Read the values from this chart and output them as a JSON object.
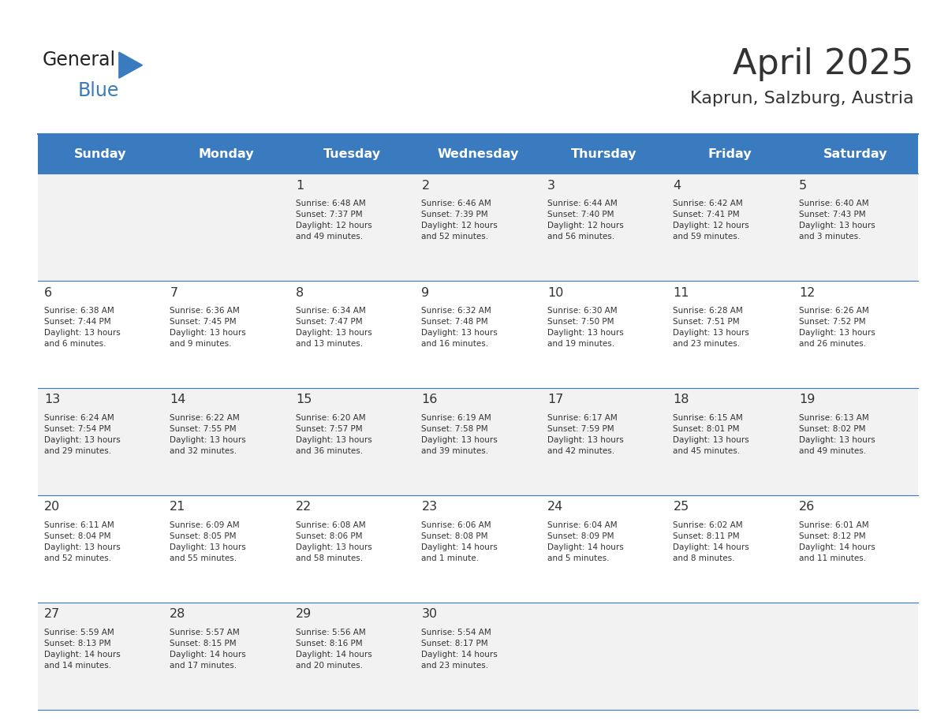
{
  "title": "April 2025",
  "subtitle": "Kaprun, Salzburg, Austria",
  "header_bg": "#3a7bbf",
  "header_text": "#ffffff",
  "row_bg_light": "#f2f2f2",
  "row_bg_white": "#ffffff",
  "border_color": "#3a7bbf",
  "text_color": "#333333",
  "days_of_week": [
    "Sunday",
    "Monday",
    "Tuesday",
    "Wednesday",
    "Thursday",
    "Friday",
    "Saturday"
  ],
  "weeks": [
    [
      {
        "day": "",
        "info": ""
      },
      {
        "day": "",
        "info": ""
      },
      {
        "day": "1",
        "info": "Sunrise: 6:48 AM\nSunset: 7:37 PM\nDaylight: 12 hours\nand 49 minutes."
      },
      {
        "day": "2",
        "info": "Sunrise: 6:46 AM\nSunset: 7:39 PM\nDaylight: 12 hours\nand 52 minutes."
      },
      {
        "day": "3",
        "info": "Sunrise: 6:44 AM\nSunset: 7:40 PM\nDaylight: 12 hours\nand 56 minutes."
      },
      {
        "day": "4",
        "info": "Sunrise: 6:42 AM\nSunset: 7:41 PM\nDaylight: 12 hours\nand 59 minutes."
      },
      {
        "day": "5",
        "info": "Sunrise: 6:40 AM\nSunset: 7:43 PM\nDaylight: 13 hours\nand 3 minutes."
      }
    ],
    [
      {
        "day": "6",
        "info": "Sunrise: 6:38 AM\nSunset: 7:44 PM\nDaylight: 13 hours\nand 6 minutes."
      },
      {
        "day": "7",
        "info": "Sunrise: 6:36 AM\nSunset: 7:45 PM\nDaylight: 13 hours\nand 9 minutes."
      },
      {
        "day": "8",
        "info": "Sunrise: 6:34 AM\nSunset: 7:47 PM\nDaylight: 13 hours\nand 13 minutes."
      },
      {
        "day": "9",
        "info": "Sunrise: 6:32 AM\nSunset: 7:48 PM\nDaylight: 13 hours\nand 16 minutes."
      },
      {
        "day": "10",
        "info": "Sunrise: 6:30 AM\nSunset: 7:50 PM\nDaylight: 13 hours\nand 19 minutes."
      },
      {
        "day": "11",
        "info": "Sunrise: 6:28 AM\nSunset: 7:51 PM\nDaylight: 13 hours\nand 23 minutes."
      },
      {
        "day": "12",
        "info": "Sunrise: 6:26 AM\nSunset: 7:52 PM\nDaylight: 13 hours\nand 26 minutes."
      }
    ],
    [
      {
        "day": "13",
        "info": "Sunrise: 6:24 AM\nSunset: 7:54 PM\nDaylight: 13 hours\nand 29 minutes."
      },
      {
        "day": "14",
        "info": "Sunrise: 6:22 AM\nSunset: 7:55 PM\nDaylight: 13 hours\nand 32 minutes."
      },
      {
        "day": "15",
        "info": "Sunrise: 6:20 AM\nSunset: 7:57 PM\nDaylight: 13 hours\nand 36 minutes."
      },
      {
        "day": "16",
        "info": "Sunrise: 6:19 AM\nSunset: 7:58 PM\nDaylight: 13 hours\nand 39 minutes."
      },
      {
        "day": "17",
        "info": "Sunrise: 6:17 AM\nSunset: 7:59 PM\nDaylight: 13 hours\nand 42 minutes."
      },
      {
        "day": "18",
        "info": "Sunrise: 6:15 AM\nSunset: 8:01 PM\nDaylight: 13 hours\nand 45 minutes."
      },
      {
        "day": "19",
        "info": "Sunrise: 6:13 AM\nSunset: 8:02 PM\nDaylight: 13 hours\nand 49 minutes."
      }
    ],
    [
      {
        "day": "20",
        "info": "Sunrise: 6:11 AM\nSunset: 8:04 PM\nDaylight: 13 hours\nand 52 minutes."
      },
      {
        "day": "21",
        "info": "Sunrise: 6:09 AM\nSunset: 8:05 PM\nDaylight: 13 hours\nand 55 minutes."
      },
      {
        "day": "22",
        "info": "Sunrise: 6:08 AM\nSunset: 8:06 PM\nDaylight: 13 hours\nand 58 minutes."
      },
      {
        "day": "23",
        "info": "Sunrise: 6:06 AM\nSunset: 8:08 PM\nDaylight: 14 hours\nand 1 minute."
      },
      {
        "day": "24",
        "info": "Sunrise: 6:04 AM\nSunset: 8:09 PM\nDaylight: 14 hours\nand 5 minutes."
      },
      {
        "day": "25",
        "info": "Sunrise: 6:02 AM\nSunset: 8:11 PM\nDaylight: 14 hours\nand 8 minutes."
      },
      {
        "day": "26",
        "info": "Sunrise: 6:01 AM\nSunset: 8:12 PM\nDaylight: 14 hours\nand 11 minutes."
      }
    ],
    [
      {
        "day": "27",
        "info": "Sunrise: 5:59 AM\nSunset: 8:13 PM\nDaylight: 14 hours\nand 14 minutes."
      },
      {
        "day": "28",
        "info": "Sunrise: 5:57 AM\nSunset: 8:15 PM\nDaylight: 14 hours\nand 17 minutes."
      },
      {
        "day": "29",
        "info": "Sunrise: 5:56 AM\nSunset: 8:16 PM\nDaylight: 14 hours\nand 20 minutes."
      },
      {
        "day": "30",
        "info": "Sunrise: 5:54 AM\nSunset: 8:17 PM\nDaylight: 14 hours\nand 23 minutes."
      },
      {
        "day": "",
        "info": ""
      },
      {
        "day": "",
        "info": ""
      },
      {
        "day": "",
        "info": ""
      }
    ]
  ],
  "logo_text_general": "General",
  "logo_text_blue": "Blue",
  "logo_color_general": "#222222",
  "logo_color_blue": "#3a7bbf"
}
